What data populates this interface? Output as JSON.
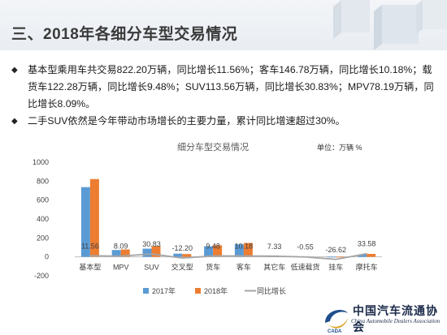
{
  "header": {
    "title": "三、2018年各细分车型交易情况"
  },
  "bullets": [
    "基本型乘用车共交易822.20万辆，同比增长11.56%；客车146.78万辆，同比增长10.18%；载货车122.28万辆，同比增长9.48%；SUV113.56万辆，同比增长30.83%；MPV78.19万辆，同比增长8.09%。",
    "二手SUV依然是今年带动市场增长的主要力量，累计同比增速超过30%。"
  ],
  "bullet_marker": "◆",
  "chart_data": {
    "type": "bar",
    "title": "细分车型交易情况",
    "unit_label": "单位：万辆  %",
    "categories": [
      "基本型",
      "MPV",
      "SUV",
      "交叉型",
      "货车",
      "客车",
      "其它车",
      "低速载货",
      "挂车",
      "摩托车"
    ],
    "series": [
      {
        "name": "2017年",
        "kind": "bar",
        "color": "#5b9bd5",
        "values": [
          737,
          72.3,
          86.8,
          34.0,
          111.7,
          133.2,
          9.0,
          1.1,
          1.6,
          23.5
        ]
      },
      {
        "name": "2018年",
        "kind": "bar",
        "color": "#ed7d31",
        "values": [
          822.2,
          78.19,
          113.56,
          29.85,
          122.28,
          146.78,
          9.66,
          1.09,
          1.18,
          31.4
        ]
      },
      {
        "name": "同比增长",
        "kind": "line",
        "color": "#a5a5a5",
        "values": [
          11.56,
          8.09,
          30.83,
          -12.2,
          9.48,
          10.18,
          7.33,
          -0.55,
          -26.62,
          33.58
        ]
      }
    ],
    "data_labels": [
      "11.56",
      "8.09",
      "30.83",
      "-12.20",
      "9.48",
      "10.18",
      "7.33",
      "-0.55",
      "-26.62",
      "33.58"
    ],
    "yticks": [
      "1000",
      "800",
      "600",
      "400",
      "200",
      "0",
      "-200"
    ],
    "ylim": [
      -200,
      1000
    ],
    "legend_position": "bottom"
  },
  "logo": {
    "name_cn": "中国汽车流通协会",
    "name_en": "China Automobile Dealers Association",
    "mark_text": "CADA"
  }
}
